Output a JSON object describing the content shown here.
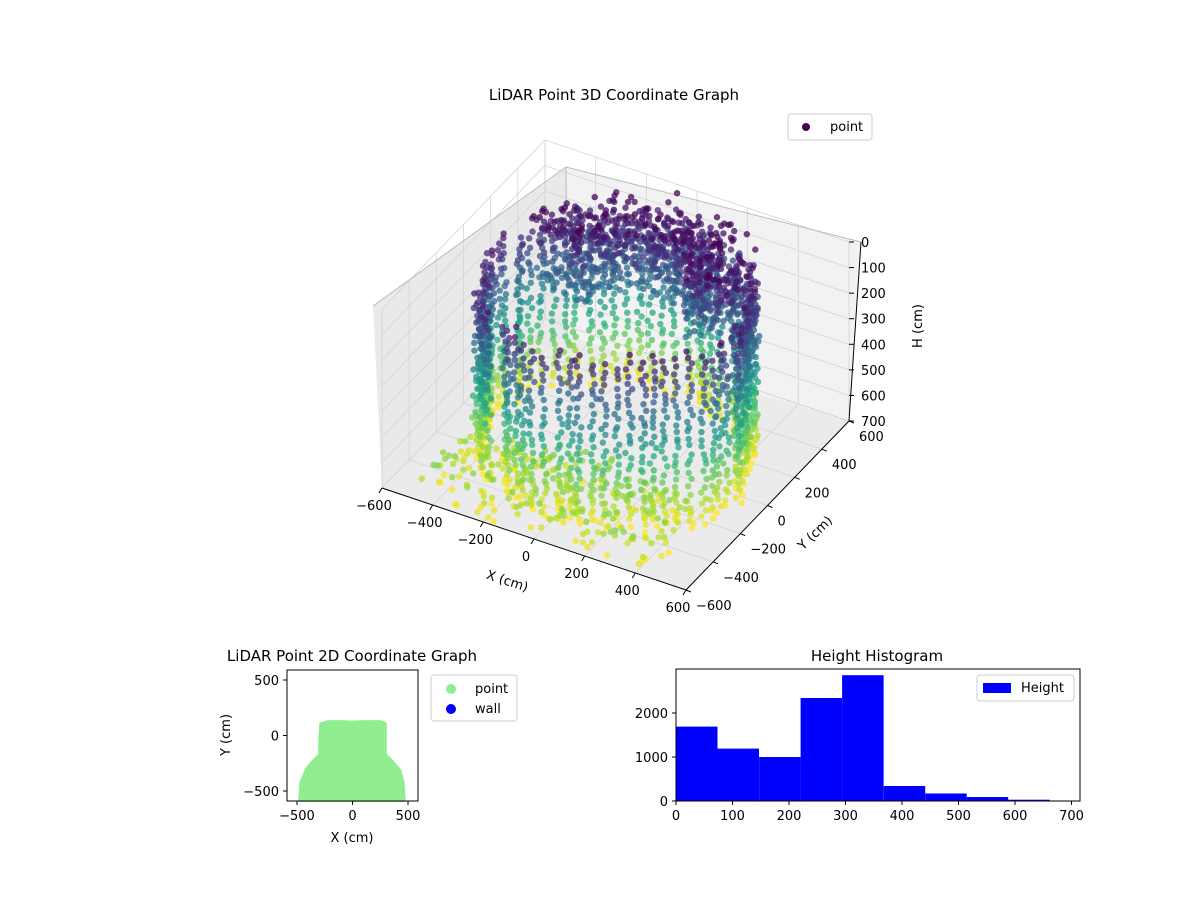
{
  "chart_data": [
    {
      "type": "scatter3d",
      "title": "LiDAR Point 3D Coordinate Graph",
      "xlabel": "X (cm)",
      "ylabel": "Y (cm)",
      "zlabel": "H (cm)",
      "xlim": [
        -600,
        600
      ],
      "ylim": [
        -600,
        600
      ],
      "zlim": [
        0,
        700
      ],
      "z_inverted": true,
      "xticks": [
        "−600",
        "−400",
        "−200",
        "0",
        "200",
        "400",
        "600"
      ],
      "yticks": [
        "−600",
        "−400",
        "−200",
        "0",
        "200",
        "400",
        "600"
      ],
      "zticks": [
        "0",
        "100",
        "200",
        "300",
        "400",
        "500",
        "600",
        "700"
      ],
      "legend": {
        "entries": [
          "point"
        ],
        "placement": "upper-right"
      },
      "colormap": "viridis",
      "grid": true
    },
    {
      "type": "scatter",
      "title": "LiDAR Point 2D Coordinate Graph",
      "xlabel": "X (cm)",
      "ylabel": "Y (cm)",
      "xlim": [
        -590,
        590
      ],
      "ylim": [
        -590,
        590
      ],
      "xticks": [
        "−500",
        "0",
        "500"
      ],
      "yticks": [
        "500",
        "0",
        "−500"
      ],
      "series": [
        {
          "name": "point",
          "color": "#90ee90"
        },
        {
          "name": "wall",
          "color": "#0000ff"
        }
      ],
      "region_outline": [
        [
          -480,
          -590
        ],
        [
          -470,
          -430
        ],
        [
          -420,
          -300
        ],
        [
          -350,
          -220
        ],
        [
          -300,
          -170
        ],
        [
          -300,
          -40
        ],
        [
          -290,
          110
        ],
        [
          -220,
          130
        ],
        [
          -100,
          130
        ],
        [
          0,
          125
        ],
        [
          120,
          130
        ],
        [
          250,
          130
        ],
        [
          300,
          110
        ],
        [
          300,
          -170
        ],
        [
          360,
          -230
        ],
        [
          430,
          -310
        ],
        [
          460,
          -420
        ],
        [
          470,
          -590
        ]
      ],
      "legend": {
        "placement": "outside-right"
      }
    },
    {
      "type": "bar",
      "title": "Height Histogram",
      "xlim": [
        0,
        715
      ],
      "ylim": [
        0,
        3000
      ],
      "xticks": [
        "0",
        "100",
        "200",
        "300",
        "400",
        "500",
        "600",
        "700"
      ],
      "yticks": [
        "0",
        "1000",
        "2000"
      ],
      "bin_edges": [
        0,
        73.5,
        147,
        220.5,
        294,
        367.5,
        441,
        514.5,
        588,
        661.5
      ],
      "values": [
        1690,
        1190,
        1000,
        2340,
        2860,
        340,
        170,
        90,
        30
      ],
      "series": [
        {
          "name": "Height",
          "color": "#0000ff"
        }
      ],
      "legend": {
        "placement": "upper-right"
      }
    }
  ]
}
